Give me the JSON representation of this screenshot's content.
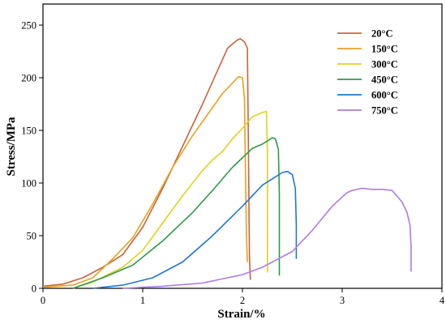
{
  "chart_data": {
    "type": "line",
    "title": "",
    "xlabel": "Strain/%",
    "ylabel": "Stress/MPa",
    "xlim": [
      0,
      4
    ],
    "ylim": [
      0,
      270
    ],
    "x_ticks": [
      0,
      1,
      2,
      3,
      4
    ],
    "y_ticks": [
      0,
      50,
      100,
      150,
      200,
      250
    ],
    "grid": false,
    "legend_position": "top-right",
    "series": [
      {
        "name": "20°C",
        "color": "#c8643c",
        "points": [
          [
            0,
            2
          ],
          [
            0.2,
            4
          ],
          [
            0.4,
            10
          ],
          [
            0.6,
            20
          ],
          [
            0.8,
            32
          ],
          [
            1.0,
            58
          ],
          [
            1.2,
            95
          ],
          [
            1.4,
            135
          ],
          [
            1.6,
            175
          ],
          [
            1.75,
            207
          ],
          [
            1.85,
            228
          ],
          [
            1.9,
            232
          ],
          [
            1.95,
            236
          ],
          [
            1.98,
            237
          ],
          [
            2.02,
            234
          ],
          [
            2.05,
            228
          ],
          [
            2.06,
            130
          ],
          [
            2.07,
            30
          ],
          [
            2.08,
            8
          ]
        ]
      },
      {
        "name": "150°C",
        "color": "#e8a020",
        "points": [
          [
            0,
            1
          ],
          [
            0.3,
            3
          ],
          [
            0.5,
            10
          ],
          [
            0.7,
            28
          ],
          [
            0.9,
            48
          ],
          [
            1.1,
            80
          ],
          [
            1.3,
            115
          ],
          [
            1.5,
            145
          ],
          [
            1.65,
            165
          ],
          [
            1.8,
            185
          ],
          [
            1.9,
            195
          ],
          [
            1.96,
            201
          ],
          [
            2.0,
            200
          ],
          [
            2.02,
            180
          ],
          [
            2.03,
            110
          ],
          [
            2.04,
            50
          ],
          [
            2.05,
            25
          ]
        ]
      },
      {
        "name": "300°C",
        "color": "#e0d21e",
        "points": [
          [
            0.3,
            0
          ],
          [
            0.5,
            6
          ],
          [
            0.8,
            20
          ],
          [
            1.0,
            36
          ],
          [
            1.2,
            62
          ],
          [
            1.4,
            88
          ],
          [
            1.6,
            112
          ],
          [
            1.7,
            122
          ],
          [
            1.8,
            130
          ],
          [
            1.9,
            142
          ],
          [
            2.0,
            152
          ],
          [
            2.1,
            163
          ],
          [
            2.2,
            167
          ],
          [
            2.24,
            168
          ],
          [
            2.25,
            130
          ],
          [
            2.25,
            60
          ],
          [
            2.25,
            15
          ]
        ]
      },
      {
        "name": "450°C",
        "color": "#2e9a48",
        "points": [
          [
            0.3,
            0
          ],
          [
            0.6,
            10
          ],
          [
            0.9,
            22
          ],
          [
            1.2,
            45
          ],
          [
            1.5,
            72
          ],
          [
            1.7,
            93
          ],
          [
            1.9,
            115
          ],
          [
            2.1,
            133
          ],
          [
            2.2,
            137
          ],
          [
            2.3,
            143
          ],
          [
            2.33,
            142
          ],
          [
            2.36,
            132
          ],
          [
            2.37,
            90
          ],
          [
            2.37,
            40
          ],
          [
            2.37,
            12
          ]
        ]
      },
      {
        "name": "600°C",
        "color": "#1f78d1",
        "points": [
          [
            0.5,
            0
          ],
          [
            0.8,
            3
          ],
          [
            1.1,
            10
          ],
          [
            1.4,
            25
          ],
          [
            1.7,
            50
          ],
          [
            2.0,
            78
          ],
          [
            2.2,
            98
          ],
          [
            2.3,
            104
          ],
          [
            2.4,
            110
          ],
          [
            2.45,
            111
          ],
          [
            2.5,
            108
          ],
          [
            2.53,
            95
          ],
          [
            2.54,
            60
          ],
          [
            2.54,
            28
          ]
        ]
      },
      {
        "name": "750°C",
        "color": "#b07ae6",
        "points": [
          [
            0.8,
            0
          ],
          [
            1.2,
            2
          ],
          [
            1.6,
            5
          ],
          [
            2.0,
            13
          ],
          [
            2.2,
            20
          ],
          [
            2.5,
            35
          ],
          [
            2.7,
            55
          ],
          [
            2.9,
            78
          ],
          [
            3.05,
            91
          ],
          [
            3.1,
            93
          ],
          [
            3.2,
            95
          ],
          [
            3.3,
            94
          ],
          [
            3.4,
            94
          ],
          [
            3.5,
            93
          ],
          [
            3.6,
            82
          ],
          [
            3.65,
            72
          ],
          [
            3.68,
            60
          ],
          [
            3.69,
            40
          ],
          [
            3.69,
            16
          ]
        ]
      }
    ]
  }
}
